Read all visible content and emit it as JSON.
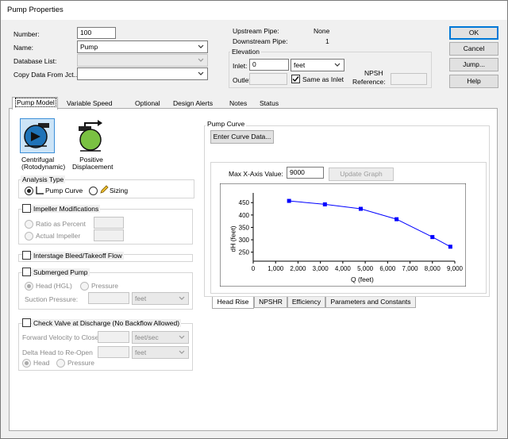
{
  "window": {
    "title": "Pump Properties"
  },
  "form": {
    "number_label": "Number:",
    "number_value": "100",
    "name_label": "Name:",
    "name_value": "Pump",
    "database_label": "Database List:",
    "database_value": "",
    "copy_label": "Copy Data From Jct...",
    "copy_value": ""
  },
  "pipes": {
    "upstream_label": "Upstream Pipe:",
    "upstream_value": "None",
    "downstream_label": "Downstream Pipe:",
    "downstream_value": "1"
  },
  "elevation": {
    "title": "Elevation",
    "inlet_label": "Inlet:",
    "inlet_value": "0",
    "unit_value": "feet",
    "outlet_label": "Outlet:",
    "same_as_inlet_label": "Same as Inlet",
    "same_as_inlet_checked": true,
    "npsh_label_1": "NPSH",
    "npsh_label_2": "Reference:"
  },
  "buttons": {
    "ok": "OK",
    "cancel": "Cancel",
    "jump": "Jump...",
    "help": "Help"
  },
  "tabs": [
    "Pump Model",
    "Variable Speed",
    "Optional",
    "Design Alerts",
    "Notes",
    "Status"
  ],
  "pump_type": {
    "centrifugal": "Centrifugal\n(Rotodynamic)",
    "positive": "Positive\nDisplacement"
  },
  "analysis": {
    "title": "Analysis Type",
    "pump_curve": "Pump Curve",
    "sizing": "Sizing",
    "selected": "Pump Curve"
  },
  "impeller": {
    "title": "Impeller Modifications",
    "ratio": "Ratio as Percent",
    "actual": "Actual Impeller"
  },
  "interstage": {
    "title": "Interstage Bleed/Takeoff Flow"
  },
  "submerged": {
    "title": "Submerged Pump",
    "head": "Head (HGL)",
    "pressure": "Pressure",
    "suction_label": "Suction Pressure:",
    "suction_unit": "feet"
  },
  "check_valve": {
    "title": "Check Valve at Discharge (No Backflow Allowed)",
    "fwd_label": "Forward Velocity to Close",
    "fwd_unit": "feet/sec",
    "delta_label": "Delta Head to Re-Open",
    "delta_unit": "feet",
    "head": "Head",
    "pressure": "Pressure"
  },
  "pump_curve": {
    "group_title": "Pump Curve",
    "enter_button": "Enter Curve Data...",
    "max_x_label": "Max X-Axis Value:",
    "max_x_value": "9000",
    "update_button": "Update Graph"
  },
  "bottom_tabs": [
    "Head Rise",
    "NPSHR",
    "Efficiency",
    "Parameters and Constants"
  ],
  "chart_data": {
    "type": "line",
    "xlabel": "Q (feet)",
    "ylabel": "dH (feet)",
    "xlim": [
      0,
      9000
    ],
    "ylim": [
      220,
      470
    ],
    "xticks": [
      "0",
      "1,000",
      "2,000",
      "3,000",
      "4,000",
      "5,000",
      "6,000",
      "7,000",
      "8,000",
      "9,000"
    ],
    "yticks": [
      "250",
      "300",
      "350",
      "400",
      "450"
    ],
    "points": [
      {
        "x": 1600,
        "y": 457
      },
      {
        "x": 3200,
        "y": 443
      },
      {
        "x": 4800,
        "y": 425
      },
      {
        "x": 6400,
        "y": 383
      },
      {
        "x": 8000,
        "y": 311
      },
      {
        "x": 8800,
        "y": 272
      }
    ],
    "line_color": "#0000ff",
    "grid": false
  }
}
